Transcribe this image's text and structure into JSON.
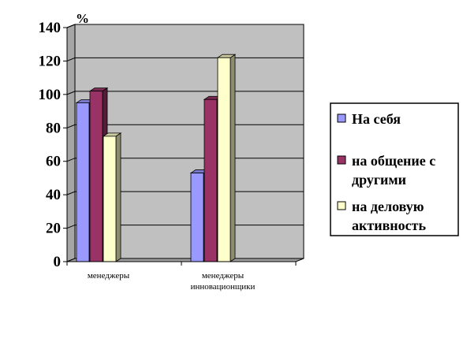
{
  "chart_data": {
    "type": "bar",
    "style": "3d-clustered-column",
    "unit_label": "%",
    "categories": [
      [
        "менеджеры"
      ],
      [
        "менеджеры",
        "инновационщики"
      ]
    ],
    "series": [
      {
        "name": "На себя",
        "color": "#9999ff",
        "values": [
          95,
          53
        ]
      },
      {
        "name": "на общение с другими",
        "color": "#993366",
        "values": [
          102,
          97
        ]
      },
      {
        "name": "на деловую активность",
        "color": "#ffffcc",
        "values": [
          75,
          122
        ]
      }
    ],
    "legend_lines": [
      [
        "На себя"
      ],
      [
        "на общение с",
        "другими"
      ],
      [
        "на деловую",
        "активность"
      ]
    ],
    "ylim": [
      0,
      140
    ],
    "yticks": [
      0,
      20,
      40,
      60,
      80,
      100,
      120,
      140
    ],
    "grid": true,
    "plot_background": "#c0c0c0",
    "legend_position": "right"
  }
}
